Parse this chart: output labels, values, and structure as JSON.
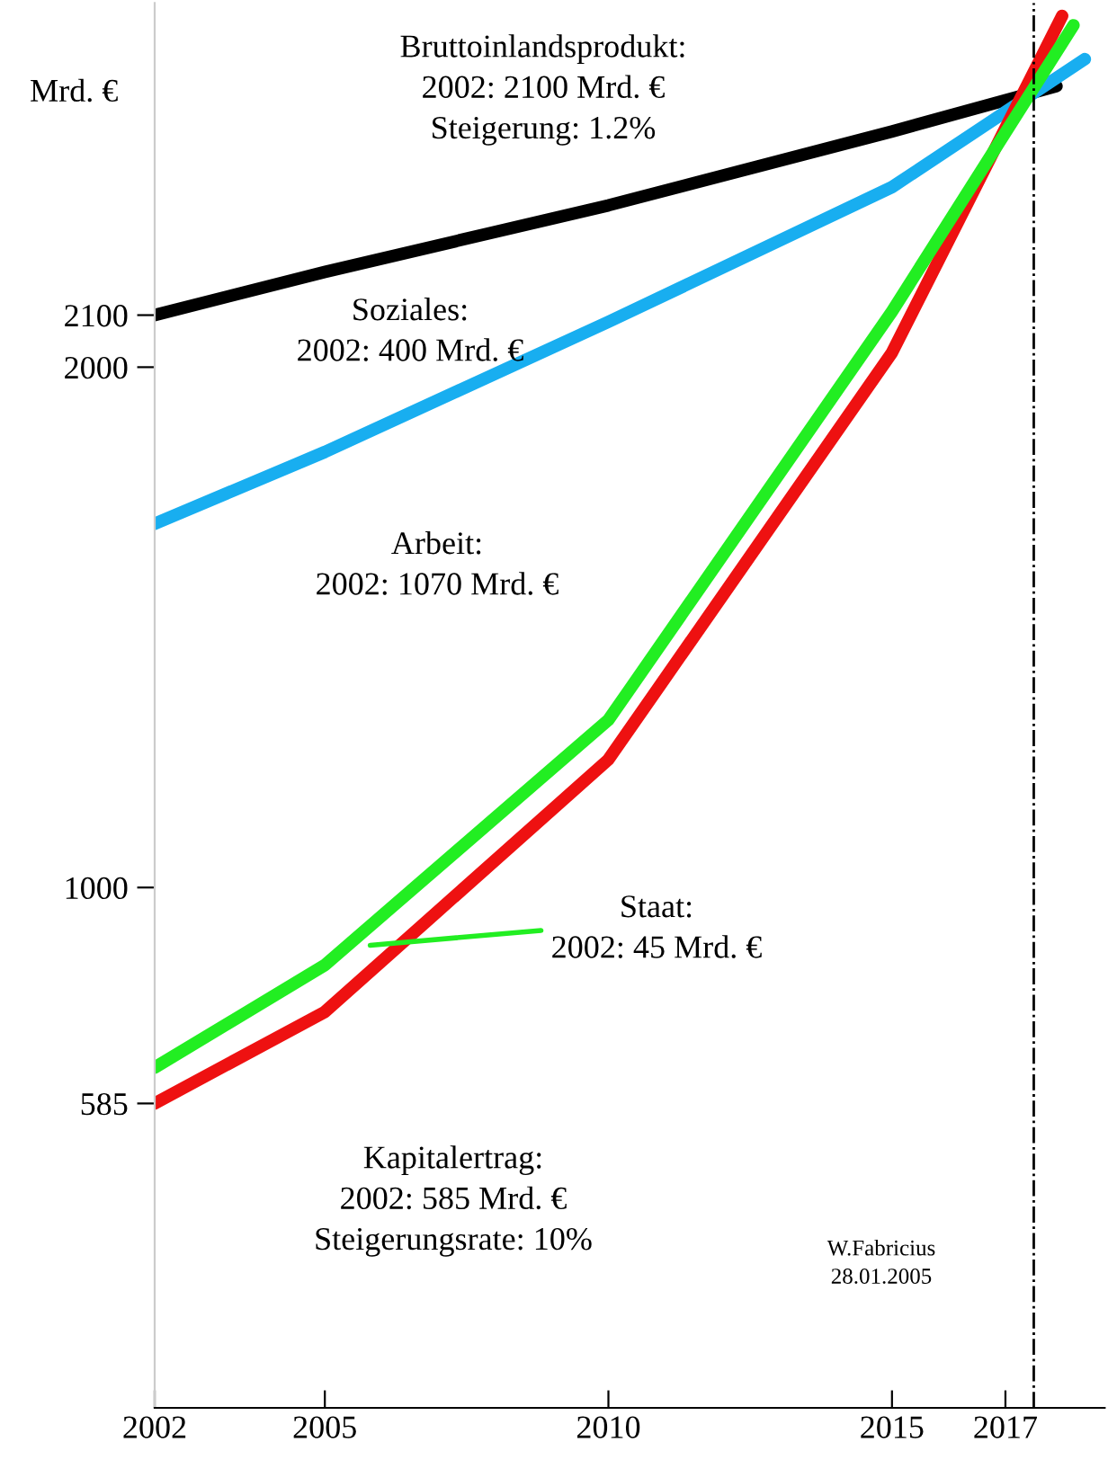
{
  "chart_data": {
    "type": "line",
    "ylabel": "Mrd. €",
    "xlim": [
      2002,
      2018.75
    ],
    "xticks": [
      2002,
      2005,
      2010,
      2015,
      2017
    ],
    "ylim": [
      0,
      2700
    ],
    "yticks": [
      585,
      1000,
      2000,
      2100
    ],
    "grid": false,
    "legend": false,
    "marker": "none",
    "line_style": "solid",
    "series": [
      {
        "color": "#000000",
        "x": [
          2002,
          2005,
          2010,
          2015,
          2017.9
        ],
        "values": [
          2100,
          2183,
          2311,
          2453,
          2540
        ]
      },
      {
        "color": "#18aef0",
        "x": [
          2002,
          2005,
          2010,
          2015,
          2018.4
        ],
        "values": [
          1699,
          1837,
          2087,
          2346,
          2592
        ]
      },
      {
        "color": "#ee1111",
        "x": [
          2002,
          2005,
          2010,
          2015,
          2018
        ],
        "values": [
          585,
          761,
          1246,
          2028,
          2675
        ]
      },
      {
        "color": "#22ee22",
        "x": [
          2002,
          2005,
          2010,
          2015,
          2018.2
        ],
        "values": [
          654,
          851,
          1322,
          2107,
          2657
        ]
      }
    ],
    "ref_lines": [
      {
        "axis": "x",
        "value": 2017.5,
        "color": "#000000",
        "line_style": "dashdot"
      }
    ],
    "annotations": [
      "Bruttoinlandsprodukt:\n2002: 2100 Mrd. €\nSteigerung: 1.2%",
      "Soziales:\n2002: 400 Mrd. €",
      "Arbeit:\n2002: 1070 Mrd. €",
      {
        "text": "Staat:\n2002: 45 Mrd. €",
        "x": 2005.8,
        "y": 889
      },
      "Kapitalertrag:\n2002: 585 Mrd. €\nSteigerungsrate: 10%",
      "W.Fabricius\n28.01.2005"
    ]
  }
}
